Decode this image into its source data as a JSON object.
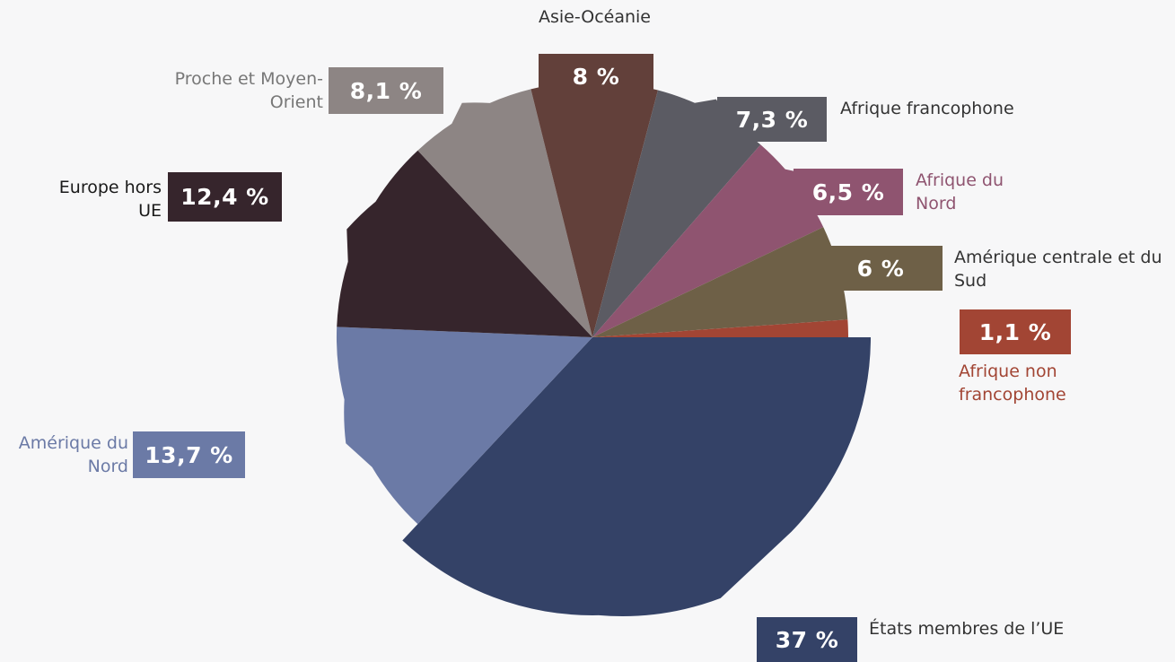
{
  "chart_data": {
    "type": "pie",
    "title": "",
    "slices": [
      {
        "label": "États membres de l’UE",
        "value": 37,
        "value_label": "37 %",
        "color": "#344267",
        "label_color": "#333333",
        "offset": false
      },
      {
        "label": "Amérique du Nord",
        "value": 13.7,
        "value_label": "13,7 %",
        "color": "#6b7aa6",
        "label_color": "#6b7aa6",
        "offset": true
      },
      {
        "label": "Europe hors UE",
        "value": 12.4,
        "value_label": "12,4 %",
        "color": "#36252c",
        "label_color": "#1a1a1a",
        "offset": true
      },
      {
        "label": "Proche et Moyen-Orient",
        "value": 8.1,
        "value_label": "8,1 %",
        "color": "#8d8584",
        "label_color": "#777777",
        "offset": true
      },
      {
        "label": "Asie-Océanie",
        "value": 8,
        "value_label": "8 %",
        "color": "#62403a",
        "label_color": "#333333",
        "offset": true
      },
      {
        "label": "Afrique francophone",
        "value": 7.3,
        "value_label": "7,3 %",
        "color": "#5b5b63",
        "label_color": "#333333",
        "offset": true
      },
      {
        "label": "Afrique du Nord",
        "value": 6.5,
        "value_label": "6,5 %",
        "color": "#8f5470",
        "label_color": "#8f5470",
        "offset": true
      },
      {
        "label": "Amérique centrale et du Sud",
        "value": 6,
        "value_label": "6 %",
        "color": "#6e6047",
        "label_color": "#333333",
        "offset": true
      },
      {
        "label": "Afrique non francophone",
        "value": 1.1,
        "value_label": "1,1 %",
        "color": "#a24534",
        "label_color": "#a24534",
        "offset": true
      }
    ]
  }
}
